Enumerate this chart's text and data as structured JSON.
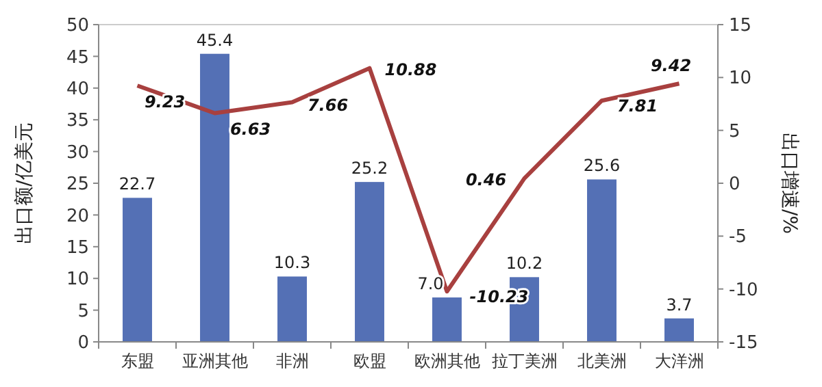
{
  "chart_data": {
    "type": "bar",
    "ylabel": "出口额/亿美元",
    "y2label": "出口增速/%",
    "categories": [
      "东盟",
      "亚洲其他",
      "非洲",
      "欧盟",
      "欧洲其他",
      "拉丁美洲",
      "北美洲",
      "大洋洲"
    ],
    "series": [
      {
        "color": "#5470b5",
        "values": [
          22.7,
          45.4,
          10.3,
          25.2,
          7.0,
          10.2,
          25.6,
          3.7
        ],
        "value_labels": [
          "22.7",
          "45.4",
          "10.3",
          "25.2",
          "7.0",
          "10.2",
          "25.6",
          "3.7"
        ]
      },
      {
        "type": "line",
        "axis": "y2",
        "color": "#a8403f",
        "values": [
          9.23,
          6.63,
          7.66,
          10.88,
          -10.23,
          0.46,
          7.81,
          9.42
        ]
      }
    ],
    "data_labels": true,
    "marker": "none",
    "line_style": "solid",
    "grid": false,
    "ylim": [
      0,
      50
    ],
    "yticks": [
      0,
      5,
      10,
      15,
      20,
      25,
      30,
      35,
      40,
      45,
      50
    ],
    "y2lim": [
      -15,
      15
    ],
    "y2ticks": [
      -15,
      -10,
      -5,
      0,
      5,
      10,
      15
    ]
  }
}
